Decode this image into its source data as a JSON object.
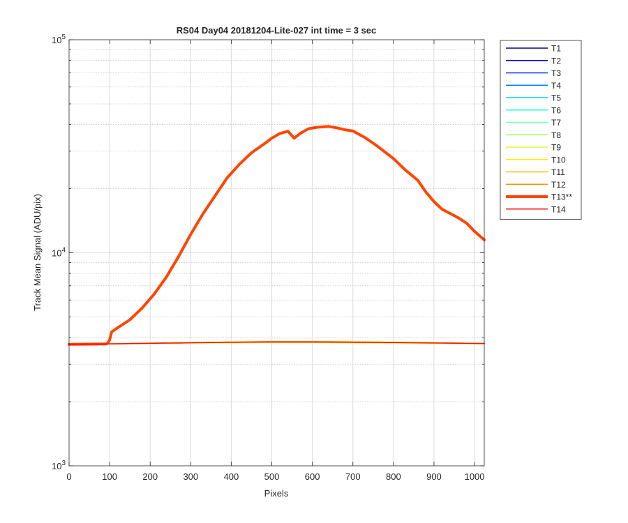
{
  "chart_data": {
    "type": "line",
    "title": "RS04 Day04 20181204-Lite-027 int time = 3 sec",
    "xlabel": "Pixels",
    "ylabel": "Track Mean Signal (ADU/pix)",
    "xlim": [
      0,
      1024
    ],
    "ylim": [
      1000,
      100000
    ],
    "yscale": "log",
    "grid": true,
    "legend_position": "outside-right",
    "x_ticks": [
      0,
      100,
      200,
      300,
      400,
      500,
      600,
      700,
      800,
      900,
      1000
    ],
    "x_tick_labels": [
      "0",
      "100",
      "200",
      "300",
      "400",
      "500",
      "600",
      "700",
      "800",
      "900",
      "1000"
    ],
    "y_major_ticks": [
      1000,
      10000,
      100000
    ],
    "y_tick_labels": [
      {
        "base": "10",
        "exp": "3"
      },
      {
        "base": "10",
        "exp": "4"
      },
      {
        "base": "10",
        "exp": "5"
      }
    ],
    "series": [
      {
        "name": "T1",
        "color": "#00008f",
        "width": 1.5,
        "x": [
          0,
          90,
          200,
          300,
          400,
          500,
          600,
          700,
          800,
          900,
          1024
        ],
        "y": [
          3720,
          3730,
          3760,
          3780,
          3800,
          3810,
          3810,
          3800,
          3790,
          3770,
          3750
        ]
      },
      {
        "name": "T2",
        "color": "#0000df",
        "width": 1.5,
        "x": [
          0,
          90,
          200,
          300,
          400,
          500,
          600,
          700,
          800,
          900,
          1024
        ],
        "y": [
          3720,
          3730,
          3760,
          3780,
          3800,
          3810,
          3810,
          3800,
          3790,
          3770,
          3750
        ]
      },
      {
        "name": "T3",
        "color": "#0030ff",
        "width": 1.5,
        "x": [
          0,
          90,
          200,
          300,
          400,
          500,
          600,
          700,
          800,
          900,
          1024
        ],
        "y": [
          3720,
          3730,
          3760,
          3780,
          3800,
          3810,
          3810,
          3800,
          3790,
          3770,
          3750
        ]
      },
      {
        "name": "T4",
        "color": "#0080ff",
        "width": 1.5,
        "x": [
          0,
          90,
          200,
          300,
          400,
          500,
          600,
          700,
          800,
          900,
          1024
        ],
        "y": [
          3720,
          3730,
          3760,
          3780,
          3800,
          3810,
          3810,
          3800,
          3790,
          3770,
          3750
        ]
      },
      {
        "name": "T5",
        "color": "#00cfff",
        "width": 1.5,
        "x": [
          0,
          90,
          200,
          300,
          400,
          500,
          600,
          700,
          800,
          900,
          1024
        ],
        "y": [
          3720,
          3730,
          3760,
          3780,
          3800,
          3810,
          3810,
          3800,
          3790,
          3770,
          3750
        ]
      },
      {
        "name": "T6",
        "color": "#20ffdf",
        "width": 1.5,
        "x": [
          0,
          90,
          200,
          300,
          400,
          500,
          600,
          700,
          800,
          900,
          1024
        ],
        "y": [
          3720,
          3730,
          3760,
          3780,
          3800,
          3810,
          3810,
          3800,
          3790,
          3770,
          3750
        ]
      },
      {
        "name": "T7",
        "color": "#70ffb0",
        "width": 1.5,
        "x": [
          0,
          90,
          200,
          300,
          400,
          500,
          600,
          700,
          800,
          900,
          1024
        ],
        "y": [
          3720,
          3730,
          3760,
          3780,
          3800,
          3810,
          3810,
          3800,
          3790,
          3770,
          3750
        ]
      },
      {
        "name": "T8",
        "color": "#9fff60",
        "width": 1.5,
        "x": [
          0,
          90,
          200,
          300,
          400,
          500,
          600,
          700,
          800,
          900,
          1024
        ],
        "y": [
          3720,
          3730,
          3760,
          3780,
          3800,
          3810,
          3810,
          3800,
          3790,
          3770,
          3750
        ]
      },
      {
        "name": "T9",
        "color": "#cfff30",
        "width": 1.5,
        "x": [
          0,
          90,
          200,
          300,
          400,
          500,
          600,
          700,
          800,
          900,
          1024
        ],
        "y": [
          3720,
          3730,
          3760,
          3780,
          3800,
          3810,
          3810,
          3800,
          3790,
          3770,
          3750
        ]
      },
      {
        "name": "T10",
        "color": "#ffef00",
        "width": 1.5,
        "x": [
          0,
          90,
          200,
          300,
          400,
          500,
          600,
          700,
          800,
          900,
          1024
        ],
        "y": [
          3720,
          3730,
          3750,
          3770,
          3780,
          3790,
          3790,
          3780,
          3770,
          3760,
          3740
        ]
      },
      {
        "name": "T11",
        "color": "#ffbf00",
        "width": 1.5,
        "x": [
          0,
          90,
          200,
          300,
          400,
          500,
          600,
          700,
          800,
          900,
          1024
        ],
        "y": [
          3720,
          3730,
          3760,
          3790,
          3810,
          3830,
          3830,
          3820,
          3800,
          3780,
          3750
        ]
      },
      {
        "name": "T12",
        "color": "#ff8f00",
        "width": 1.5,
        "x": [
          0,
          90,
          200,
          300,
          400,
          500,
          600,
          700,
          800,
          900,
          1024
        ],
        "y": [
          3720,
          3730,
          3760,
          3790,
          3810,
          3830,
          3830,
          3820,
          3800,
          3780,
          3750
        ]
      },
      {
        "name": "T13**",
        "color": "#ff4500",
        "width": 4,
        "x": [
          0,
          90,
          95,
          100,
          105,
          120,
          150,
          180,
          210,
          240,
          270,
          300,
          330,
          360,
          390,
          420,
          450,
          480,
          500,
          520,
          540,
          555,
          570,
          590,
          610,
          640,
          660,
          680,
          700,
          730,
          760,
          800,
          830,
          860,
          880,
          900,
          920,
          940,
          960,
          980,
          1000,
          1024
        ],
        "y": [
          3720,
          3730,
          3760,
          3900,
          4250,
          4450,
          4850,
          5500,
          6400,
          7700,
          9600,
          12200,
          15200,
          18500,
          22500,
          26000,
          29500,
          32300,
          34500,
          36300,
          37200,
          34500,
          36300,
          38200,
          38800,
          39200,
          38600,
          37800,
          37300,
          34700,
          31700,
          27700,
          24400,
          21900,
          19300,
          17400,
          16000,
          15300,
          14600,
          13800,
          12600,
          11500
        ]
      },
      {
        "name": "T14",
        "color": "#ff1000",
        "width": 1.5,
        "x": [
          0,
          90,
          200,
          300,
          400,
          500,
          600,
          700,
          800,
          900,
          1024
        ],
        "y": [
          3720,
          3730,
          3760,
          3780,
          3800,
          3810,
          3810,
          3800,
          3790,
          3770,
          3750
        ]
      }
    ]
  }
}
